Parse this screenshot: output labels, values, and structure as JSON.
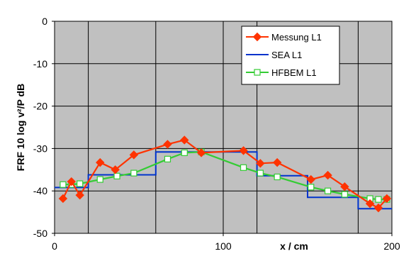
{
  "chart_data": {
    "type": "line",
    "title": "",
    "xlabel": "x / cm",
    "ylabel": "FRF 10 log v²/P dB",
    "xlim": [
      0,
      200
    ],
    "ylim": [
      -50,
      0
    ],
    "x_ticks": [
      0,
      100,
      200
    ],
    "y_ticks": [
      0,
      -10,
      -20,
      -30,
      -40,
      -50
    ],
    "x_minor_gridlines": [
      20,
      60,
      120,
      180
    ],
    "grid": true,
    "plot_background": "#c0c0c0",
    "legend_position": "top-right",
    "series": [
      {
        "name": "Messung L1",
        "color": "#ff3300",
        "marker": "diamond",
        "line_style": "solid",
        "points": [
          [
            5,
            -41.8
          ],
          [
            10,
            -37.8
          ],
          [
            15,
            -41.0
          ],
          [
            27,
            -33.3
          ],
          [
            36,
            -35.0
          ],
          [
            47,
            -31.5
          ],
          [
            67,
            -29.0
          ],
          [
            77,
            -28.0
          ],
          [
            87,
            -31.0
          ],
          [
            112,
            -30.5
          ],
          [
            122,
            -33.5
          ],
          [
            132,
            -33.3
          ],
          [
            152,
            -37.3
          ],
          [
            162,
            -36.3
          ],
          [
            172,
            -39.0
          ],
          [
            187,
            -43.0
          ],
          [
            192,
            -44.0
          ],
          [
            197,
            -41.8
          ]
        ]
      },
      {
        "name": "SEA L1",
        "color": "#0033cc",
        "marker": "none",
        "line_style": "step",
        "points": [
          [
            0,
            -39.2
          ],
          [
            20,
            -39.2
          ],
          [
            20,
            -36.2
          ],
          [
            60,
            -36.2
          ],
          [
            60,
            -30.8
          ],
          [
            120,
            -30.8
          ],
          [
            120,
            -36.4
          ],
          [
            150,
            -36.4
          ],
          [
            150,
            -41.5
          ],
          [
            180,
            -41.5
          ],
          [
            180,
            -44.2
          ],
          [
            200,
            -44.2
          ]
        ]
      },
      {
        "name": "HFBEM L1",
        "color": "#33cc33",
        "marker": "square",
        "line_style": "solid",
        "points": [
          [
            5,
            -38.5
          ],
          [
            10,
            -38.5
          ],
          [
            15,
            -38.3
          ],
          [
            27,
            -37.3
          ],
          [
            37,
            -36.5
          ],
          [
            47,
            -35.8
          ],
          [
            67,
            -32.5
          ],
          [
            77,
            -31.0
          ],
          [
            87,
            -30.8
          ],
          [
            112,
            -34.5
          ],
          [
            122,
            -35.8
          ],
          [
            132,
            -36.7
          ],
          [
            152,
            -39.1
          ],
          [
            162,
            -40.0
          ],
          [
            172,
            -40.8
          ],
          [
            187,
            -41.8
          ],
          [
            192,
            -42.0
          ],
          [
            197,
            -42.0
          ]
        ]
      }
    ]
  }
}
